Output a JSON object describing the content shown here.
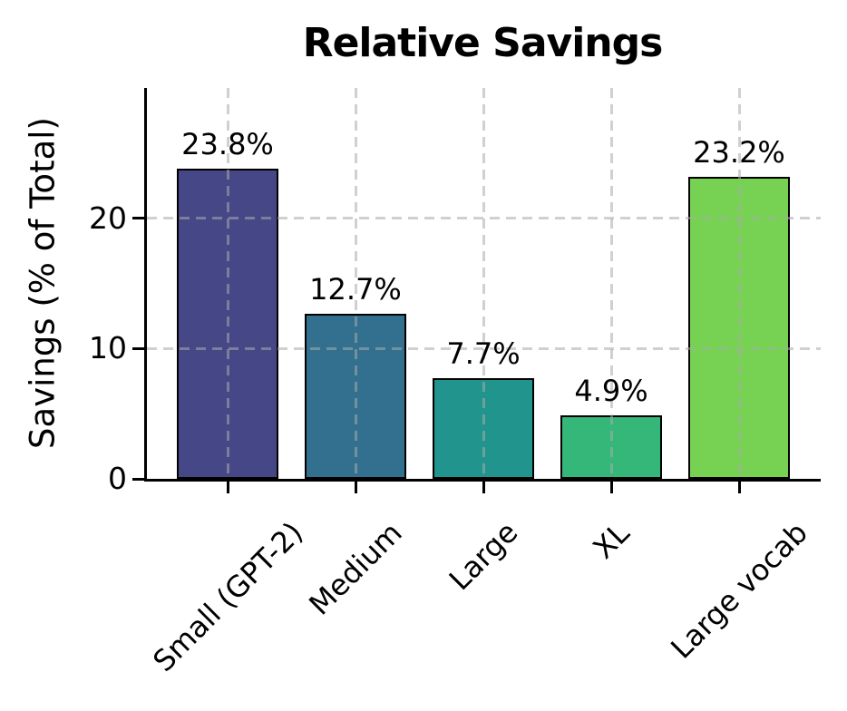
{
  "chart_data": {
    "type": "bar",
    "title": "Relative Savings",
    "ylabel": "Savings (% of Total)",
    "xlabel": "",
    "categories": [
      "Small (GPT-2)",
      "Medium",
      "Large",
      "XL",
      "Large vocab"
    ],
    "values": [
      23.8,
      12.7,
      7.7,
      4.9,
      23.2
    ],
    "bar_labels": [
      "23.8%",
      "12.7%",
      "7.7%",
      "4.9%",
      "23.2%"
    ],
    "bar_colors": [
      "#454786",
      "#33708f",
      "#21948e",
      "#35b779",
      "#77d153"
    ],
    "bar_edge_color": "#000000",
    "ylim": [
      0,
      30
    ],
    "yticks": [
      0,
      10,
      20
    ],
    "ytick_labels": [
      "0",
      "10",
      "20"
    ],
    "grid": "dashed, horizontal at yticks and vertical at bar centers, drawn over bars",
    "grid_color": "#aaaaaa",
    "xtick_label_rotation_deg": 45,
    "legend": "none",
    "background": "#ffffff",
    "text_color": "#000000"
  }
}
